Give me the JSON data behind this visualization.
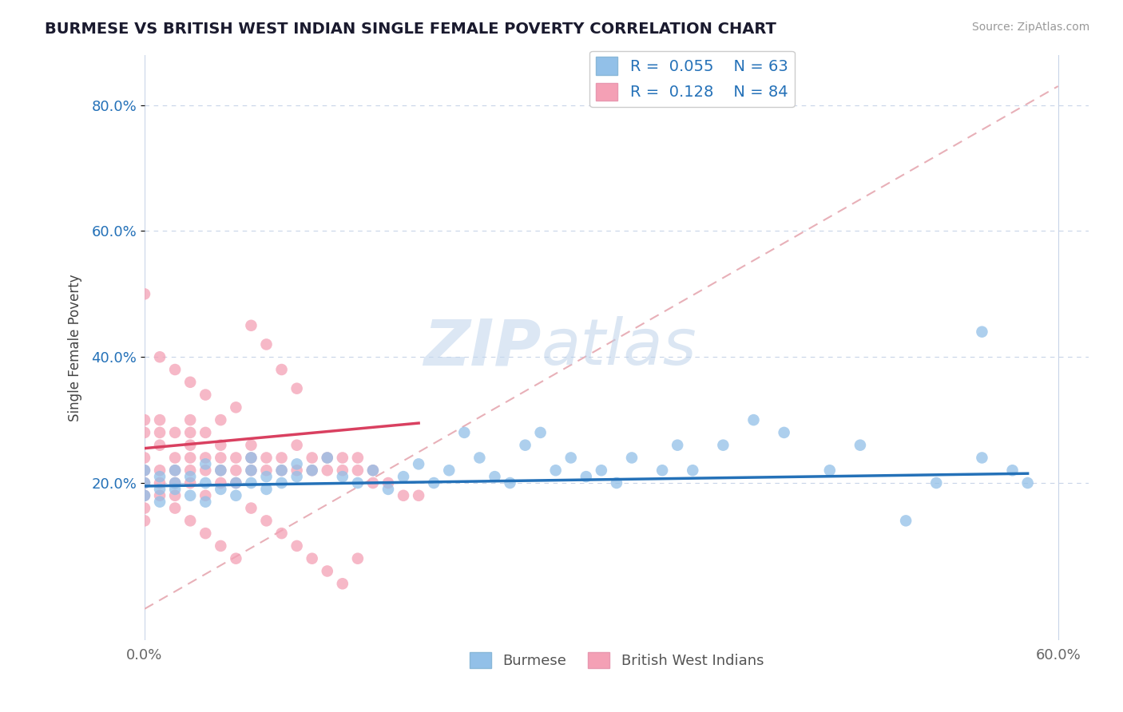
{
  "title": "BURMESE VS BRITISH WEST INDIAN SINGLE FEMALE POVERTY CORRELATION CHART",
  "source": "Source: ZipAtlas.com",
  "ylabel": "Single Female Poverty",
  "xlim": [
    0.0,
    0.62
  ],
  "ylim": [
    -0.05,
    0.88
  ],
  "y_ticks": [
    0.2,
    0.4,
    0.6,
    0.8
  ],
  "y_tick_labels": [
    "20.0%",
    "40.0%",
    "60.0%",
    "80.0%"
  ],
  "burmese_color": "#92c0e8",
  "bwi_color": "#f4a0b5",
  "burmese_trend_color": "#2471b8",
  "bwi_trend_color": "#d94060",
  "ref_line_color": "#e8b0b8",
  "watermark_zip": "ZIP",
  "watermark_atlas": "atlas",
  "burmese_x": [
    0.0,
    0.0,
    0.0,
    0.01,
    0.01,
    0.01,
    0.02,
    0.02,
    0.02,
    0.03,
    0.03,
    0.04,
    0.04,
    0.04,
    0.05,
    0.05,
    0.06,
    0.06,
    0.07,
    0.07,
    0.07,
    0.08,
    0.08,
    0.09,
    0.09,
    0.1,
    0.1,
    0.11,
    0.12,
    0.13,
    0.14,
    0.15,
    0.16,
    0.17,
    0.18,
    0.19,
    0.2,
    0.21,
    0.22,
    0.23,
    0.24,
    0.25,
    0.26,
    0.27,
    0.28,
    0.29,
    0.3,
    0.31,
    0.32,
    0.34,
    0.35,
    0.36,
    0.38,
    0.4,
    0.42,
    0.45,
    0.47,
    0.5,
    0.52,
    0.55,
    0.57,
    0.55,
    0.58
  ],
  "burmese_y": [
    0.2,
    0.18,
    0.22,
    0.17,
    0.19,
    0.21,
    0.2,
    0.22,
    0.19,
    0.21,
    0.18,
    0.23,
    0.2,
    0.17,
    0.22,
    0.19,
    0.2,
    0.18,
    0.22,
    0.24,
    0.2,
    0.19,
    0.21,
    0.22,
    0.2,
    0.23,
    0.21,
    0.22,
    0.24,
    0.21,
    0.2,
    0.22,
    0.19,
    0.21,
    0.23,
    0.2,
    0.22,
    0.28,
    0.24,
    0.21,
    0.2,
    0.26,
    0.28,
    0.22,
    0.24,
    0.21,
    0.22,
    0.2,
    0.24,
    0.22,
    0.26,
    0.22,
    0.26,
    0.3,
    0.28,
    0.22,
    0.26,
    0.14,
    0.2,
    0.24,
    0.22,
    0.44,
    0.2
  ],
  "bwi_x": [
    0.0,
    0.0,
    0.0,
    0.0,
    0.0,
    0.0,
    0.0,
    0.0,
    0.01,
    0.01,
    0.01,
    0.01,
    0.01,
    0.01,
    0.02,
    0.02,
    0.02,
    0.02,
    0.02,
    0.02,
    0.03,
    0.03,
    0.03,
    0.03,
    0.03,
    0.03,
    0.04,
    0.04,
    0.04,
    0.04,
    0.05,
    0.05,
    0.05,
    0.05,
    0.06,
    0.06,
    0.06,
    0.07,
    0.07,
    0.07,
    0.08,
    0.08,
    0.09,
    0.09,
    0.1,
    0.1,
    0.11,
    0.11,
    0.12,
    0.12,
    0.13,
    0.13,
    0.14,
    0.14,
    0.15,
    0.15,
    0.16,
    0.17,
    0.18,
    0.04,
    0.03,
    0.02,
    0.01,
    0.0,
    0.05,
    0.06,
    0.07,
    0.08,
    0.09,
    0.1,
    0.03,
    0.04,
    0.05,
    0.06,
    0.07,
    0.08,
    0.09,
    0.1,
    0.11,
    0.12,
    0.13,
    0.14
  ],
  "bwi_y": [
    0.2,
    0.22,
    0.24,
    0.28,
    0.3,
    0.18,
    0.16,
    0.14,
    0.2,
    0.22,
    0.26,
    0.28,
    0.3,
    0.18,
    0.2,
    0.22,
    0.24,
    0.28,
    0.18,
    0.16,
    0.22,
    0.24,
    0.26,
    0.28,
    0.3,
    0.2,
    0.22,
    0.24,
    0.28,
    0.18,
    0.22,
    0.24,
    0.26,
    0.2,
    0.22,
    0.24,
    0.2,
    0.24,
    0.26,
    0.22,
    0.24,
    0.22,
    0.22,
    0.24,
    0.22,
    0.26,
    0.24,
    0.22,
    0.24,
    0.22,
    0.22,
    0.24,
    0.22,
    0.24,
    0.2,
    0.22,
    0.2,
    0.18,
    0.18,
    0.34,
    0.36,
    0.38,
    0.4,
    0.5,
    0.3,
    0.32,
    0.45,
    0.42,
    0.38,
    0.35,
    0.14,
    0.12,
    0.1,
    0.08,
    0.16,
    0.14,
    0.12,
    0.1,
    0.08,
    0.06,
    0.04,
    0.08
  ]
}
